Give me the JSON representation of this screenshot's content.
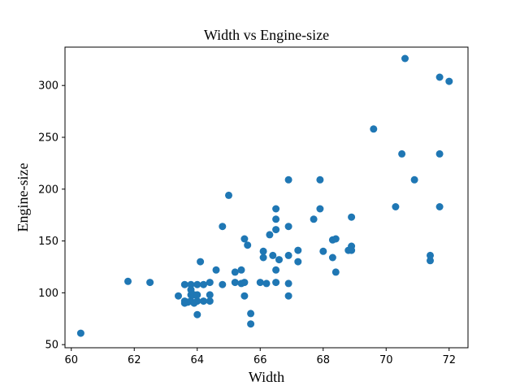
{
  "chart_data": {
    "type": "scatter",
    "title": "Width vs Engine-size",
    "xlabel": "Width",
    "ylabel": "Engine-size",
    "xlim": [
      59.8,
      72.6
    ],
    "ylim": [
      47,
      337
    ],
    "xticks": [
      60,
      62,
      64,
      66,
      68,
      70,
      72
    ],
    "yticks": [
      50,
      100,
      150,
      200,
      250,
      300
    ],
    "grid": false,
    "marker_color": "#1f77b4",
    "points": [
      [
        60.3,
        61
      ],
      [
        61.8,
        111
      ],
      [
        62.5,
        110
      ],
      [
        63.4,
        97
      ],
      [
        63.6,
        90
      ],
      [
        63.6,
        92
      ],
      [
        63.6,
        108
      ],
      [
        63.7,
        91
      ],
      [
        63.8,
        92
      ],
      [
        63.8,
        98
      ],
      [
        63.8,
        103
      ],
      [
        63.8,
        108
      ],
      [
        63.9,
        90
      ],
      [
        63.9,
        98
      ],
      [
        64.0,
        79
      ],
      [
        64.0,
        92
      ],
      [
        64.0,
        98
      ],
      [
        64.0,
        108
      ],
      [
        64.1,
        130
      ],
      [
        64.2,
        92
      ],
      [
        64.2,
        108
      ],
      [
        64.4,
        92
      ],
      [
        64.4,
        98
      ],
      [
        64.4,
        110
      ],
      [
        64.6,
        122
      ],
      [
        64.8,
        108
      ],
      [
        64.8,
        164
      ],
      [
        65.0,
        194
      ],
      [
        65.2,
        110
      ],
      [
        65.2,
        120
      ],
      [
        65.4,
        109
      ],
      [
        65.4,
        122
      ],
      [
        65.5,
        97
      ],
      [
        65.5,
        110
      ],
      [
        65.5,
        152
      ],
      [
        65.6,
        146
      ],
      [
        65.7,
        70
      ],
      [
        65.7,
        80
      ],
      [
        66.0,
        110
      ],
      [
        66.1,
        134
      ],
      [
        66.1,
        140
      ],
      [
        66.2,
        109
      ],
      [
        66.3,
        156
      ],
      [
        66.4,
        136
      ],
      [
        66.5,
        110
      ],
      [
        66.5,
        122
      ],
      [
        66.5,
        161
      ],
      [
        66.5,
        171
      ],
      [
        66.5,
        181
      ],
      [
        66.6,
        132
      ],
      [
        66.9,
        97
      ],
      [
        66.9,
        109
      ],
      [
        66.9,
        136
      ],
      [
        66.9,
        164
      ],
      [
        66.9,
        209
      ],
      [
        67.2,
        130
      ],
      [
        67.2,
        141
      ],
      [
        67.7,
        171
      ],
      [
        67.9,
        181
      ],
      [
        67.9,
        209
      ],
      [
        68.0,
        140
      ],
      [
        68.3,
        134
      ],
      [
        68.3,
        151
      ],
      [
        68.4,
        120
      ],
      [
        68.4,
        152
      ],
      [
        68.8,
        141
      ],
      [
        68.9,
        145
      ],
      [
        68.9,
        141
      ],
      [
        68.9,
        173
      ],
      [
        69.6,
        258
      ],
      [
        70.3,
        183
      ],
      [
        70.5,
        234
      ],
      [
        70.6,
        326
      ],
      [
        70.9,
        209
      ],
      [
        71.4,
        131
      ],
      [
        71.4,
        136
      ],
      [
        71.7,
        183
      ],
      [
        71.7,
        234
      ],
      [
        71.7,
        308
      ],
      [
        72.0,
        304
      ]
    ]
  }
}
